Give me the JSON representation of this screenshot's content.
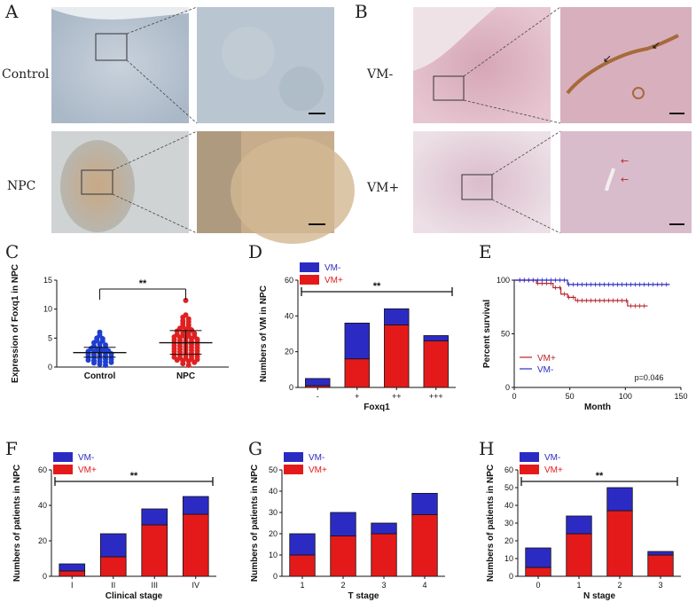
{
  "panels": {
    "A": {
      "letter": "A",
      "rows": [
        "Control",
        "NPC"
      ]
    },
    "B": {
      "letter": "B",
      "rows": [
        "VM-",
        "VM+"
      ]
    }
  },
  "colors": {
    "vm_minus": "#2b2bc4",
    "vm_plus": "#e41a1a",
    "dot_control": "#1f3fd0",
    "dot_npc": "#e02020"
  },
  "chart_data": [
    {
      "id": "C",
      "letter": "C",
      "type": "scatter",
      "categories": [
        "Control",
        "NPC"
      ],
      "ylabel": "Expression of Foxq1  in NPC",
      "ylim": [
        0,
        15
      ],
      "yticks": [
        0,
        5,
        10,
        15
      ],
      "summary": {
        "Control": {
          "mean": 2.5,
          "sd_low": 1.7,
          "sd_high": 3.4
        },
        "NPC": {
          "mean": 4.2,
          "sd_low": 2.2,
          "sd_high": 6.3
        }
      },
      "points": {
        "Control": [
          6.0,
          5.5,
          5.0,
          4.9,
          4.6,
          4.5,
          4.2,
          4.0,
          3.8,
          3.6,
          3.5,
          3.3,
          3.2,
          3.0,
          2.9,
          2.8,
          2.7,
          2.6,
          2.5,
          2.4,
          2.3,
          2.2,
          2.1,
          2.0,
          1.9,
          1.8,
          1.7,
          1.6,
          1.5,
          1.4,
          1.3,
          1.2,
          1.1,
          1.0,
          0.9,
          0.8,
          0.7,
          0.5,
          0.3
        ],
        "NPC": [
          11.5,
          9.0,
          8.6,
          8.3,
          8.0,
          7.8,
          7.5,
          7.3,
          7.0,
          6.9,
          6.7,
          6.5,
          6.4,
          6.2,
          6.0,
          5.9,
          5.8,
          5.6,
          5.5,
          5.4,
          5.3,
          5.2,
          5.1,
          5.0,
          4.9,
          4.8,
          4.7,
          4.6,
          4.5,
          4.4,
          4.3,
          4.2,
          4.1,
          4.0,
          3.9,
          3.8,
          3.7,
          3.6,
          3.5,
          3.4,
          3.3,
          3.2,
          3.1,
          3.0,
          2.9,
          2.8,
          2.7,
          2.6,
          2.5,
          2.4,
          2.3,
          2.2,
          2.1,
          2.0,
          1.9,
          1.8,
          1.7,
          1.6,
          1.5,
          1.4,
          1.3,
          1.2,
          1.1,
          1.0,
          0.8,
          0.6,
          0.3
        ]
      },
      "annotation": "**"
    },
    {
      "id": "D",
      "letter": "D",
      "type": "bar",
      "categories": [
        "-",
        "+",
        "++",
        "+++"
      ],
      "series": [
        {
          "name": "VM+",
          "values": [
            1,
            16,
            35,
            26
          ]
        },
        {
          "name": "VM-",
          "values": [
            4,
            20,
            9,
            3
          ]
        }
      ],
      "xlabel": "Foxq1",
      "ylabel": "Numbers of VM in NPC",
      "ylim": [
        0,
        60
      ],
      "yticks": [
        0,
        20,
        40,
        60
      ],
      "legend": [
        "VM-",
        "VM+"
      ],
      "annotation": "**"
    },
    {
      "id": "E",
      "letter": "E",
      "type": "line",
      "xlabel": "Month",
      "ylabel": "Percent survival",
      "xlim": [
        0,
        150
      ],
      "xticks": [
        0,
        50,
        100,
        150
      ],
      "ylim": [
        0,
        100
      ],
      "yticks": [
        0,
        50,
        100
      ],
      "series": [
        {
          "name": "VM+",
          "x": [
            0,
            15,
            20,
            30,
            35,
            40,
            42,
            48,
            55,
            100,
            102,
            120
          ],
          "y": [
            100,
            100,
            97,
            97,
            93,
            93,
            87,
            84,
            81,
            81,
            76,
            76
          ]
        },
        {
          "name": "VM-",
          "x": [
            0,
            45,
            48,
            140
          ],
          "y": [
            100,
            100,
            96,
            96
          ]
        }
      ],
      "annotation": "p=0.046"
    },
    {
      "id": "F",
      "letter": "F",
      "type": "bar",
      "categories": [
        "I",
        "II",
        "III",
        "IV"
      ],
      "series": [
        {
          "name": "VM+",
          "values": [
            3,
            11,
            29,
            35
          ]
        },
        {
          "name": "VM-",
          "values": [
            4,
            13,
            9,
            10
          ]
        }
      ],
      "xlabel": "Clinical stage",
      "ylabel": "Numbers of  patients in NPC",
      "ylim": [
        0,
        60
      ],
      "yticks": [
        0,
        20,
        40,
        60
      ],
      "legend": [
        "VM-",
        "VM+"
      ],
      "annotation": "**"
    },
    {
      "id": "G",
      "letter": "G",
      "type": "bar",
      "categories": [
        "1",
        "2",
        "3",
        "4"
      ],
      "series": [
        {
          "name": "VM+",
          "values": [
            10,
            19,
            20,
            29
          ]
        },
        {
          "name": "VM-",
          "values": [
            10,
            11,
            5,
            10
          ]
        }
      ],
      "xlabel": "T stage",
      "ylabel": "Numbers of  patients in NPC",
      "ylim": [
        0,
        50
      ],
      "yticks": [
        0,
        10,
        20,
        30,
        40,
        50
      ],
      "legend": [
        "VM-",
        "VM+"
      ],
      "annotation": ""
    },
    {
      "id": "H",
      "letter": "H",
      "type": "bar",
      "categories": [
        "0",
        "1",
        "2",
        "3"
      ],
      "series": [
        {
          "name": "VM+",
          "values": [
            5,
            24,
            37,
            12
          ]
        },
        {
          "name": "VM-",
          "values": [
            11,
            10,
            13,
            2
          ]
        }
      ],
      "xlabel": "N stage",
      "ylabel": "Numbers of  patients in NPC",
      "ylim": [
        0,
        60
      ],
      "yticks": [
        0,
        10,
        20,
        30,
        40,
        50,
        60
      ],
      "legend": [
        "VM-",
        "VM+"
      ],
      "annotation": "**"
    }
  ]
}
